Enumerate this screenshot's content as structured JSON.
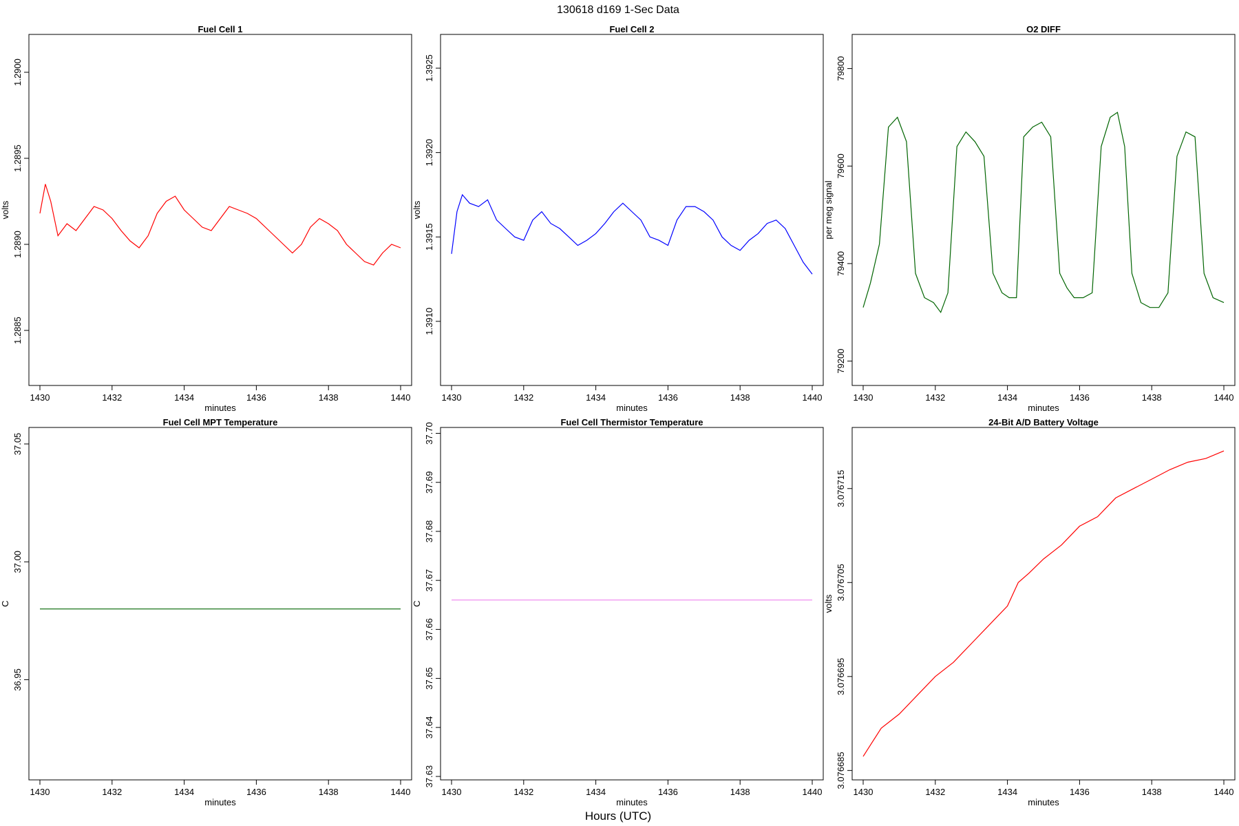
{
  "figure": {
    "title": "130618   d169   1-Sec Data",
    "xlabel": "Hours (UTC)"
  },
  "chart_data": [
    {
      "type": "line",
      "title": "Fuel Cell 1",
      "xlabel": "minutes",
      "ylabel": "volts",
      "color": "#ff0000",
      "xlim": [
        1430,
        1440
      ],
      "ylim": [
        1.28818,
        1.29022
      ],
      "xticks": [
        1430,
        1432,
        1434,
        1436,
        1438,
        1440
      ],
      "yticks": [
        1.2885,
        1.289,
        1.2895,
        1.29
      ],
      "ytick_labels": [
        "1.2885",
        "1.2890",
        "1.2895",
        "1.2900"
      ],
      "grid": false,
      "series": [
        {
          "x": [
            1430.0,
            1430.15,
            1430.3,
            1430.5,
            1430.75,
            1431.0,
            1431.25,
            1431.5,
            1431.75,
            1432.0,
            1432.25,
            1432.5,
            1432.75,
            1433.0,
            1433.25,
            1433.5,
            1433.75,
            1434.0,
            1434.25,
            1434.5,
            1434.75,
            1435.0,
            1435.25,
            1435.5,
            1435.75,
            1436.0,
            1436.25,
            1436.5,
            1436.75,
            1437.0,
            1437.25,
            1437.5,
            1437.75,
            1438.0,
            1438.25,
            1438.5,
            1438.75,
            1439.0,
            1439.25,
            1439.5,
            1439.75,
            1440.0
          ],
          "y": [
            1.28918,
            1.28935,
            1.28925,
            1.28905,
            1.28912,
            1.28908,
            1.28915,
            1.28922,
            1.2892,
            1.28915,
            1.28908,
            1.28902,
            1.28898,
            1.28905,
            1.28918,
            1.28925,
            1.28928,
            1.2892,
            1.28915,
            1.2891,
            1.28908,
            1.28915,
            1.28922,
            1.2892,
            1.28918,
            1.28915,
            1.2891,
            1.28905,
            1.289,
            1.28895,
            1.289,
            1.2891,
            1.28915,
            1.28912,
            1.28908,
            1.289,
            1.28895,
            1.2889,
            1.28888,
            1.28895,
            1.289,
            1.28898
          ]
        }
      ]
    },
    {
      "type": "line",
      "title": "Fuel Cell 2",
      "xlabel": "minutes",
      "ylabel": "volts",
      "color": "#0000ff",
      "xlim": [
        1430,
        1440
      ],
      "ylim": [
        1.39062,
        1.3927
      ],
      "xticks": [
        1430,
        1432,
        1434,
        1436,
        1438,
        1440
      ],
      "yticks": [
        1.391,
        1.3915,
        1.392,
        1.3925
      ],
      "ytick_labels": [
        "1.3910",
        "1.3915",
        "1.3920",
        "1.3925"
      ],
      "grid": false,
      "series": [
        {
          "x": [
            1430.0,
            1430.15,
            1430.3,
            1430.5,
            1430.75,
            1431.0,
            1431.25,
            1431.5,
            1431.75,
            1432.0,
            1432.25,
            1432.5,
            1432.75,
            1433.0,
            1433.25,
            1433.5,
            1433.75,
            1434.0,
            1434.25,
            1434.5,
            1434.75,
            1435.0,
            1435.25,
            1435.5,
            1435.75,
            1436.0,
            1436.25,
            1436.5,
            1436.75,
            1437.0,
            1437.25,
            1437.5,
            1437.75,
            1438.0,
            1438.25,
            1438.5,
            1438.75,
            1439.0,
            1439.25,
            1439.5,
            1439.75,
            1440.0
          ],
          "y": [
            1.3914,
            1.39165,
            1.39175,
            1.3917,
            1.39168,
            1.39172,
            1.3916,
            1.39155,
            1.3915,
            1.39148,
            1.3916,
            1.39165,
            1.39158,
            1.39155,
            1.3915,
            1.39145,
            1.39148,
            1.39152,
            1.39158,
            1.39165,
            1.3917,
            1.39165,
            1.3916,
            1.3915,
            1.39148,
            1.39145,
            1.3916,
            1.39168,
            1.39168,
            1.39165,
            1.3916,
            1.3915,
            1.39145,
            1.39142,
            1.39148,
            1.39152,
            1.39158,
            1.3916,
            1.39155,
            1.39145,
            1.39135,
            1.39128
          ]
        }
      ]
    },
    {
      "type": "line",
      "title": "O2 DIFF",
      "xlabel": "minutes",
      "ylabel": "per meg signal",
      "color": "#006400",
      "xlim": [
        1430,
        1440
      ],
      "ylim": [
        79150,
        79870
      ],
      "xticks": [
        1430,
        1432,
        1434,
        1436,
        1438,
        1440
      ],
      "yticks": [
        79200,
        79400,
        79600,
        79800
      ],
      "grid": false,
      "series": [
        {
          "x": [
            1430.0,
            1430.2,
            1430.45,
            1430.7,
            1430.95,
            1431.2,
            1431.45,
            1431.7,
            1431.95,
            1432.15,
            1432.35,
            1432.6,
            1432.85,
            1433.1,
            1433.35,
            1433.6,
            1433.85,
            1434.05,
            1434.25,
            1434.45,
            1434.7,
            1434.95,
            1435.2,
            1435.45,
            1435.65,
            1435.85,
            1436.1,
            1436.35,
            1436.6,
            1436.85,
            1437.05,
            1437.25,
            1437.45,
            1437.7,
            1437.95,
            1438.2,
            1438.45,
            1438.7,
            1438.95,
            1439.2,
            1439.45,
            1439.7,
            1440.0
          ],
          "y": [
            79310,
            79360,
            79440,
            79680,
            79700,
            79650,
            79380,
            79330,
            79320,
            79300,
            79340,
            79640,
            79670,
            79650,
            79620,
            79380,
            79340,
            79330,
            79330,
            79660,
            79680,
            79690,
            79660,
            79380,
            79350,
            79330,
            79330,
            79340,
            79640,
            79700,
            79710,
            79640,
            79380,
            79320,
            79310,
            79310,
            79340,
            79620,
            79670,
            79660,
            79380,
            79330,
            79320
          ]
        }
      ]
    },
    {
      "type": "line",
      "title": "Fuel Cell MPT Temperature",
      "xlabel": "minutes",
      "ylabel": "C",
      "color": "#006400",
      "xlim": [
        1430,
        1440
      ],
      "ylim": [
        36.9075,
        37.057
      ],
      "xticks": [
        1430,
        1432,
        1434,
        1436,
        1438,
        1440
      ],
      "yticks": [
        36.95,
        37.0,
        37.05
      ],
      "ytick_labels": [
        "36.95",
        "37.00",
        "37.05"
      ],
      "grid": false,
      "series": [
        {
          "x": [
            1430.0,
            1440.0
          ],
          "y": [
            36.98,
            36.98
          ]
        }
      ]
    },
    {
      "type": "line",
      "title": "Fuel Cell Thermistor Temperature",
      "xlabel": "minutes",
      "ylabel": "C",
      "color": "#ee82ee",
      "xlim": [
        1430,
        1440
      ],
      "ylim": [
        37.6293,
        37.7012
      ],
      "xticks": [
        1430,
        1432,
        1434,
        1436,
        1438,
        1440
      ],
      "yticks": [
        37.63,
        37.64,
        37.65,
        37.66,
        37.67,
        37.68,
        37.69,
        37.7
      ],
      "ytick_labels": [
        "37.63",
        "37.64",
        "37.65",
        "37.66",
        "37.67",
        "37.68",
        "37.69",
        "37.70"
      ],
      "grid": false,
      "series": [
        {
          "x": [
            1430.0,
            1440.0
          ],
          "y": [
            37.666,
            37.666
          ]
        }
      ]
    },
    {
      "type": "line",
      "title": "24-Bit A/D Battery Voltage",
      "xlabel": "minutes",
      "ylabel": "volts",
      "color": "#ff0000",
      "xlim": [
        1430,
        1440
      ],
      "ylim": [
        3.076684,
        3.0767215
      ],
      "xticks": [
        1430,
        1432,
        1434,
        1436,
        1438,
        1440
      ],
      "yticks": [
        3.076685,
        3.076695,
        3.076705,
        3.076715
      ],
      "ytick_labels": [
        "3.076685",
        "3.076695",
        "3.076705",
        "3.076715"
      ],
      "grid": false,
      "series": [
        {
          "x": [
            1430.0,
            1430.5,
            1431.0,
            1431.5,
            1432.0,
            1432.5,
            1433.0,
            1433.5,
            1434.0,
            1434.3,
            1434.6,
            1435.0,
            1435.5,
            1436.0,
            1436.5,
            1437.0,
            1437.5,
            1438.0,
            1438.5,
            1439.0,
            1439.5,
            1440.0
          ],
          "y": [
            3.0766865,
            3.0766895,
            3.076691,
            3.076693,
            3.076695,
            3.0766965,
            3.0766985,
            3.0767005,
            3.0767025,
            3.076705,
            3.076706,
            3.0767075,
            3.076709,
            3.076711,
            3.076712,
            3.076714,
            3.076715,
            3.076716,
            3.076717,
            3.0767178,
            3.0767182,
            3.076719
          ]
        }
      ]
    }
  ]
}
